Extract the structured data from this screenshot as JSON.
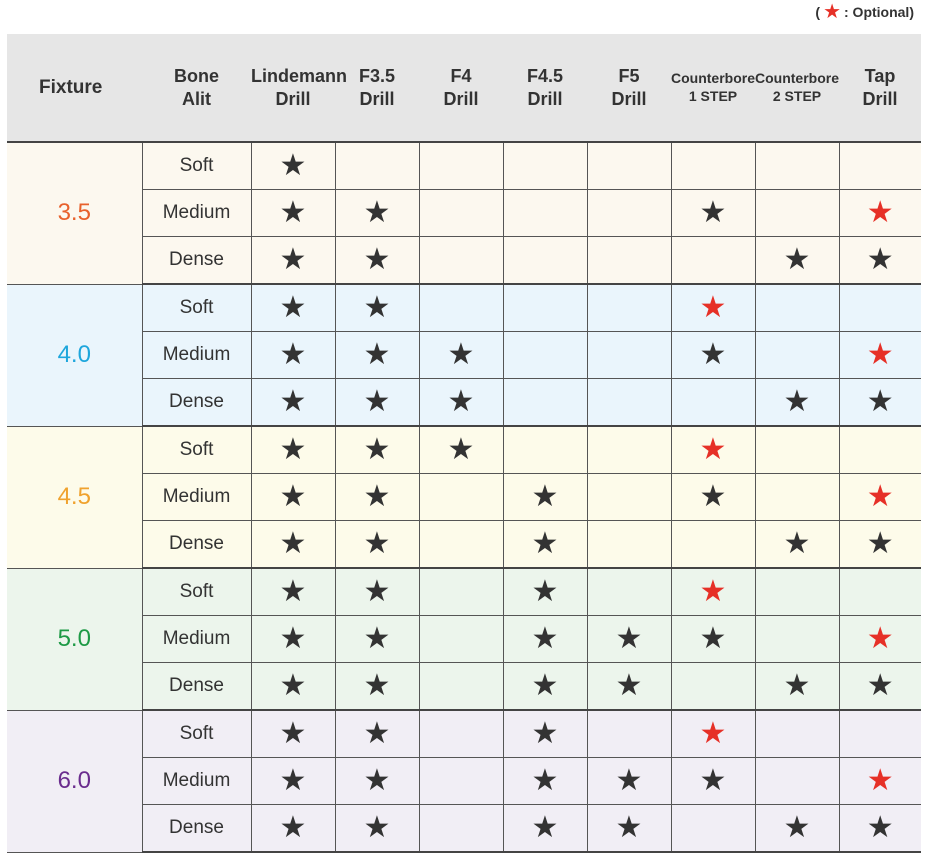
{
  "legend": {
    "open": "(",
    "star_icon": "star-icon",
    "text": ": Optional)"
  },
  "colors": {
    "header_bg": "#e6e6e6",
    "star_required": "#333333",
    "star_optional": "#e63027"
  },
  "headers": [
    "Fixture",
    "Bone\nAlit",
    "Lindemann\nDrill",
    "F3.5\nDrill",
    "F4\nDrill",
    "F4.5\nDrill",
    "F5\nDrill",
    "Counterbore\n1 STEP",
    "Counterbore\n2 STEP",
    "Tap\nDrill"
  ],
  "groups": [
    {
      "fixture": "3.5",
      "color": "#e8612c",
      "bg": "#fcf8ef",
      "rows": [
        {
          "bone": "Soft",
          "marks": [
            "b",
            "",
            "",
            "",
            "",
            "",
            "",
            ""
          ]
        },
        {
          "bone": "Medium",
          "marks": [
            "b",
            "b",
            "",
            "",
            "",
            "b",
            "",
            "r"
          ]
        },
        {
          "bone": "Dense",
          "marks": [
            "b",
            "b",
            "",
            "",
            "",
            "",
            "b",
            "b"
          ]
        }
      ]
    },
    {
      "fixture": "4.0",
      "color": "#1ea6dc",
      "bg": "#eaf5fc",
      "rows": [
        {
          "bone": "Soft",
          "marks": [
            "b",
            "b",
            "",
            "",
            "",
            "r",
            "",
            ""
          ]
        },
        {
          "bone": "Medium",
          "marks": [
            "b",
            "b",
            "b",
            "",
            "",
            "b",
            "",
            "r"
          ]
        },
        {
          "bone": "Dense",
          "marks": [
            "b",
            "b",
            "b",
            "",
            "",
            "",
            "b",
            "b"
          ]
        }
      ]
    },
    {
      "fixture": "4.5",
      "color": "#f0a22e",
      "bg": "#fdfbea",
      "rows": [
        {
          "bone": "Soft",
          "marks": [
            "b",
            "b",
            "b",
            "",
            "",
            "r",
            "",
            ""
          ]
        },
        {
          "bone": "Medium",
          "marks": [
            "b",
            "b",
            "",
            "b",
            "",
            "b",
            "",
            "r"
          ]
        },
        {
          "bone": "Dense",
          "marks": [
            "b",
            "b",
            "",
            "b",
            "",
            "",
            "b",
            "b"
          ]
        }
      ]
    },
    {
      "fixture": "5.0",
      "color": "#1e9a46",
      "bg": "#ecf5ec",
      "rows": [
        {
          "bone": "Soft",
          "marks": [
            "b",
            "b",
            "",
            "b",
            "",
            "r",
            "",
            ""
          ]
        },
        {
          "bone": "Medium",
          "marks": [
            "b",
            "b",
            "",
            "b",
            "b",
            "b",
            "",
            "r"
          ]
        },
        {
          "bone": "Dense",
          "marks": [
            "b",
            "b",
            "",
            "b",
            "b",
            "",
            "b",
            "b"
          ]
        }
      ]
    },
    {
      "fixture": "6.0",
      "color": "#6a2c8e",
      "bg": "#f1eef5",
      "rows": [
        {
          "bone": "Soft",
          "marks": [
            "b",
            "b",
            "",
            "b",
            "",
            "r",
            "",
            ""
          ]
        },
        {
          "bone": "Medium",
          "marks": [
            "b",
            "b",
            "",
            "b",
            "b",
            "b",
            "",
            "r"
          ]
        },
        {
          "bone": "Dense",
          "marks": [
            "b",
            "b",
            "",
            "b",
            "b",
            "",
            "b",
            "b"
          ]
        }
      ]
    }
  ]
}
